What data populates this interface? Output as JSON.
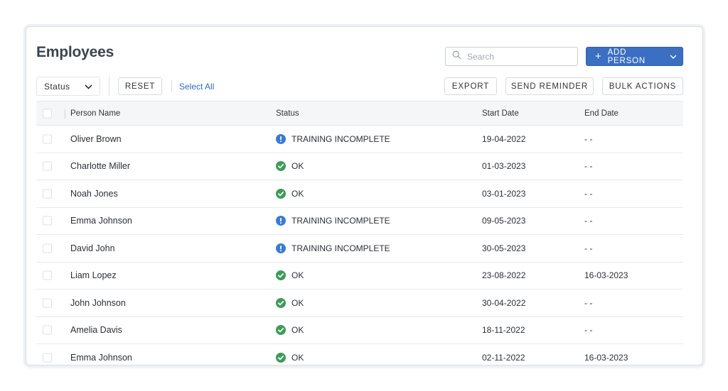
{
  "header": {
    "title": "Employees",
    "search_placeholder": "Search",
    "add_label": "ADD PERSON"
  },
  "toolbar": {
    "status_filter": "Status",
    "reset_label": "RESET",
    "select_all_label": "Select All",
    "export_label": "EXPORT",
    "send_reminder_label": "SEND REMINDER",
    "bulk_actions_label": "BULK ACTIONS"
  },
  "table": {
    "columns": {
      "name": "Person Name",
      "status": "Status",
      "start": "Start Date",
      "end": "End Date"
    },
    "rows": [
      {
        "name": "Oliver Brown",
        "status": "TRAINING INCOMPLETE",
        "status_kind": "warning",
        "start": "19-04-2022",
        "end": "- -"
      },
      {
        "name": "Charlotte Miller",
        "status": "OK",
        "status_kind": "ok",
        "start": "01-03-2023",
        "end": "- -"
      },
      {
        "name": "Noah Jones",
        "status": "OK",
        "status_kind": "ok",
        "start": "03-01-2023",
        "end": "- -"
      },
      {
        "name": "Emma Johnson",
        "status": "TRAINING INCOMPLETE",
        "status_kind": "warning",
        "start": "09-05-2023",
        "end": "- -"
      },
      {
        "name": "David John",
        "status": "TRAINING INCOMPLETE",
        "status_kind": "warning",
        "start": "30-05-2023",
        "end": "- -"
      },
      {
        "name": "Liam Lopez",
        "status": "OK",
        "status_kind": "ok",
        "start": "23-08-2022",
        "end": "16-03-2023"
      },
      {
        "name": "John Johnson",
        "status": "OK",
        "status_kind": "ok",
        "start": "30-04-2022",
        "end": "- -"
      },
      {
        "name": "Amelia Davis",
        "status": "OK",
        "status_kind": "ok",
        "start": "18-11-2022",
        "end": "- -"
      },
      {
        "name": "Emma Johnson",
        "status": "OK",
        "status_kind": "ok",
        "start": "02-11-2022",
        "end": "16-03-2023"
      }
    ]
  },
  "colors": {
    "primary": "#3a6fc2",
    "link": "#2f6bc2",
    "ok": "#3f9b5a",
    "warning": "#3a7bd5"
  },
  "icons": {
    "search": "search-icon",
    "add": "plus-icon",
    "caret": "chevron-down-icon",
    "ok": "check-circle-icon",
    "warning": "exclamation-circle-icon"
  }
}
